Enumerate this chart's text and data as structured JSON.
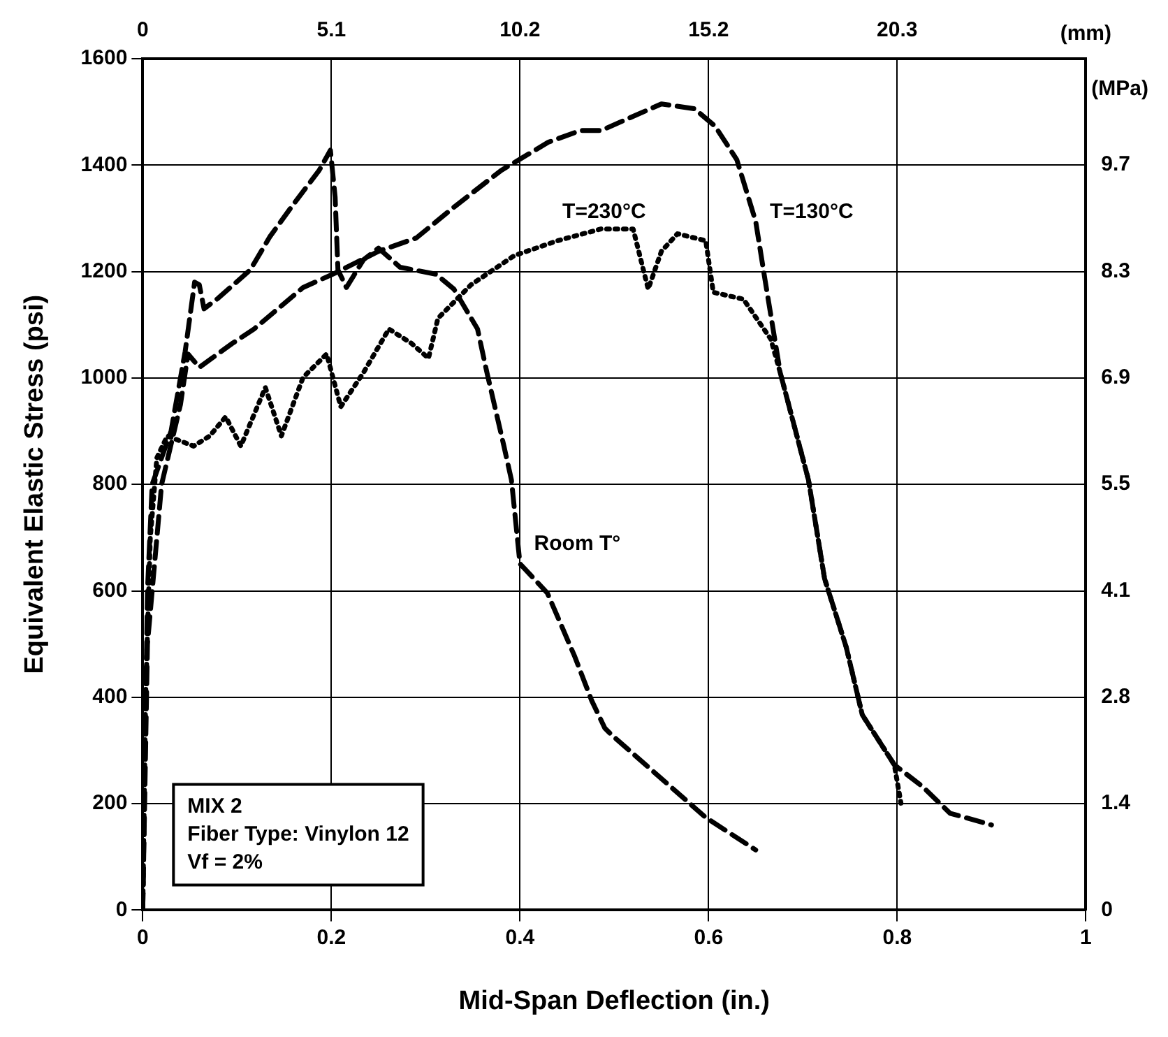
{
  "chart_data": {
    "type": "line",
    "xlabel": "Mid-Span Deflection (in.)",
    "ylabel": "Equivalent Elastic Stress (psi)",
    "x2label": "(mm)",
    "y2label": "(MPa)",
    "xlim": [
      0,
      1
    ],
    "xticks": [
      0,
      0.2,
      0.4,
      0.6,
      0.8,
      1
    ],
    "ylim": [
      0,
      1600
    ],
    "yticks": [
      0,
      200,
      400,
      600,
      800,
      1000,
      1200,
      1400,
      1600
    ],
    "x2lim": [
      0,
      25.4
    ],
    "x2ticks": [
      0,
      {
        "value": 5.08,
        "label": "5.1"
      },
      {
        "value": 10.16,
        "label": "10.2"
      },
      {
        "value": 15.24,
        "label": "15.2"
      },
      {
        "value": 20.32,
        "label": "20.3"
      }
    ],
    "y2lim": [
      0,
      11.03
    ],
    "y2ticks": [
      0,
      {
        "value": 1.379,
        "label": "1.4"
      },
      {
        "value": 2.758,
        "label": "2.8"
      },
      {
        "value": 4.137,
        "label": "4.1"
      },
      {
        "value": 5.516,
        "label": "5.5"
      },
      {
        "value": 6.895,
        "label": "6.9"
      },
      {
        "value": 8.274,
        "label": "8.3"
      },
      {
        "value": 9.653,
        "label": "9.7"
      }
    ],
    "grid": true,
    "legend": false,
    "marker": "none",
    "series": [
      {
        "color": "#000000",
        "line_style": "dashed",
        "x": [
          0,
          0.005,
          0.01,
          0.03,
          0.045,
          0.055,
          0.06,
          0.065,
          0.08,
          0.114,
          0.135,
          0.16,
          0.187,
          0.199,
          0.204,
          0.207,
          0.216,
          0.234,
          0.25,
          0.273,
          0.311,
          0.33,
          0.355,
          0.365,
          0.383,
          0.391,
          0.4,
          0.429,
          0.458,
          0.476,
          0.49,
          0.498,
          0.597,
          0.65
        ],
        "values": [
          0,
          600,
          800,
          900,
          1050,
          1180,
          1175,
          1130,
          1150,
          1203,
          1266,
          1327,
          1390,
          1428,
          1340,
          1203,
          1170,
          1222,
          1244,
          1208,
          1195,
          1167,
          1092,
          1010,
          872,
          808,
          651,
          596,
          477,
          394,
          342,
          328,
          174,
          113
        ]
      },
      {
        "color": "#000000",
        "line_style": "dotted",
        "x": [
          0,
          0.003,
          0.008,
          0.015,
          0.026,
          0.054,
          0.071,
          0.088,
          0.104,
          0.13,
          0.147,
          0.17,
          0.195,
          0.21,
          0.234,
          0.261,
          0.285,
          0.303,
          0.313,
          0.348,
          0.394,
          0.44,
          0.486,
          0.52,
          0.536,
          0.55,
          0.567,
          0.597,
          0.605,
          0.637,
          0.666,
          0.676,
          0.706,
          0.723,
          0.746,
          0.763,
          0.797,
          0.804
        ],
        "values": [
          0,
          400,
          700,
          850,
          891,
          872,
          891,
          927,
          872,
          982,
          891,
          1001,
          1045,
          946,
          1010,
          1092,
          1065,
          1037,
          1112,
          1175,
          1230,
          1258,
          1280,
          1280,
          1167,
          1238,
          1271,
          1258,
          1161,
          1148,
          1073,
          1010,
          808,
          623,
          494,
          367,
          273,
          201
        ]
      },
      {
        "color": "#000000",
        "line_style": "dashed",
        "x": [
          0,
          0.005,
          0.02,
          0.04,
          0.048,
          0.06,
          0.095,
          0.118,
          0.17,
          0.204,
          0.25,
          0.29,
          0.33,
          0.38,
          0.43,
          0.464,
          0.486,
          0.55,
          0.585,
          0.607,
          0.63,
          0.65,
          0.66,
          0.676,
          0.706,
          0.723,
          0.746,
          0.763,
          0.797,
          0.827,
          0.856,
          0.9
        ],
        "values": [
          0,
          500,
          800,
          950,
          1045,
          1020,
          1065,
          1092,
          1170,
          1197,
          1238,
          1263,
          1321,
          1390,
          1443,
          1465,
          1465,
          1515,
          1506,
          1473,
          1410,
          1294,
          1183,
          1010,
          808,
          623,
          494,
          367,
          273,
          232,
          182,
          160
        ]
      }
    ],
    "annotations": [
      "Room T°",
      "T=230°C",
      "T=130°C",
      "MIX 2",
      "Fiber Type: Vinylon 12",
      "Vf = 2%"
    ]
  }
}
